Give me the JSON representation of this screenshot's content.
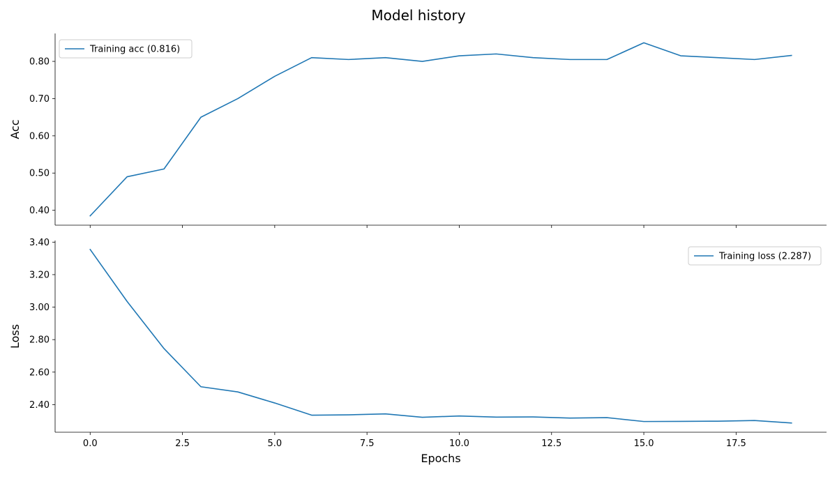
{
  "title": "Model history",
  "chart_data": [
    {
      "type": "line",
      "ylabel": "Acc",
      "xlabel": "",
      "x": [
        0,
        1,
        2,
        3,
        4,
        5,
        6,
        7,
        8,
        9,
        10,
        11,
        12,
        13,
        14,
        15,
        16,
        17,
        18,
        19
      ],
      "xlim": [
        -0.95,
        19.95
      ],
      "ylim": [
        0.36,
        0.875
      ],
      "yticks": [
        0.4,
        0.5,
        0.6,
        0.7,
        0.8
      ],
      "ytick_labels": [
        "0.40",
        "0.50",
        "0.60",
        "0.70",
        "0.80"
      ],
      "xticks": [
        0,
        2.5,
        5,
        7.5,
        10,
        12.5,
        15,
        17.5
      ],
      "show_xtick_labels": false,
      "grid": false,
      "legend_position": "top-left",
      "series": [
        {
          "name": "Training acc (0.816)",
          "color": "#1f77b4",
          "values": [
            0.385,
            0.49,
            0.511,
            0.65,
            0.7,
            0.76,
            0.81,
            0.805,
            0.81,
            0.8,
            0.815,
            0.82,
            0.81,
            0.805,
            0.805,
            0.85,
            0.815,
            0.81,
            0.805,
            0.816
          ]
        }
      ]
    },
    {
      "type": "line",
      "ylabel": "Loss",
      "xlabel": "Epochs",
      "x": [
        0,
        1,
        2,
        3,
        4,
        5,
        6,
        7,
        8,
        9,
        10,
        11,
        12,
        13,
        14,
        15,
        16,
        17,
        18,
        19
      ],
      "xlim": [
        -0.95,
        19.95
      ],
      "ylim": [
        2.23,
        3.41
      ],
      "yticks": [
        2.4,
        2.6,
        2.8,
        3.0,
        3.2,
        3.4
      ],
      "ytick_labels": [
        "2.40",
        "2.60",
        "2.80",
        "3.00",
        "3.20",
        "3.40"
      ],
      "xticks": [
        0,
        2.5,
        5,
        7.5,
        10,
        12.5,
        15,
        17.5
      ],
      "xtick_labels": [
        "0.0",
        "2.5",
        "5.0",
        "7.5",
        "10.0",
        "12.5",
        "15.0",
        "17.5"
      ],
      "show_xtick_labels": true,
      "grid": false,
      "legend_position": "top-right",
      "series": [
        {
          "name": "Training loss (2.287)",
          "color": "#1f77b4",
          "values": [
            3.355,
            3.035,
            2.745,
            2.51,
            2.478,
            2.41,
            2.335,
            2.337,
            2.343,
            2.322,
            2.33,
            2.323,
            2.324,
            2.317,
            2.32,
            2.296,
            2.297,
            2.298,
            2.302,
            2.287
          ]
        }
      ]
    }
  ]
}
